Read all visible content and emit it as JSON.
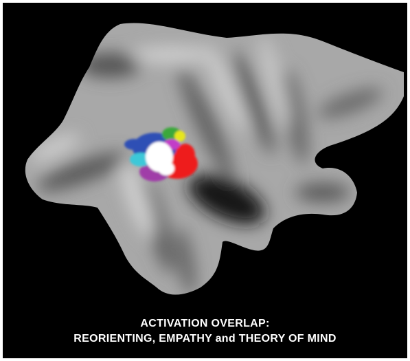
{
  "caption": {
    "line1": "ACTIVATION OVERLAP:",
    "line2": "REORIENTING, EMPATHY and THEORY OF MIND"
  }
}
